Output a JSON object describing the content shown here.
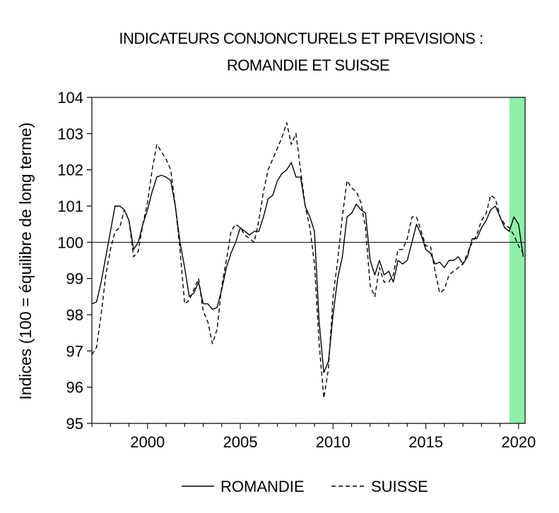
{
  "chart_data": {
    "type": "line",
    "title": [
      "INDICATEURS CONJONCTURELS ET PREVISIONS :",
      "ROMANDIE ET SUISSE"
    ],
    "ylabel": "Indices (100 = équilibre de long terme)",
    "xlabel": "",
    "xlim": [
      1997,
      2020.35
    ],
    "ylim": [
      95,
      104
    ],
    "x_ticks": [
      2000,
      2005,
      2010,
      2015,
      2020
    ],
    "y_ticks": [
      95,
      96,
      97,
      98,
      99,
      100,
      101,
      102,
      103,
      104
    ],
    "reference_line": 100,
    "forecast_band": {
      "from": 2019.5,
      "to": 2020.35,
      "color": "#8ef0a8"
    },
    "legend_position": "bottom",
    "series": [
      {
        "name": "ROMANDIE",
        "style": "solid",
        "points": [
          [
            1997.0,
            98.3
          ],
          [
            1997.25,
            98.35
          ],
          [
            1997.5,
            98.9
          ],
          [
            1997.75,
            99.6
          ],
          [
            1998.0,
            100.3
          ],
          [
            1998.25,
            101.0
          ],
          [
            1998.5,
            101.0
          ],
          [
            1998.75,
            100.9
          ],
          [
            1999.0,
            100.6
          ],
          [
            1999.25,
            99.8
          ],
          [
            1999.5,
            100.0
          ],
          [
            1999.75,
            100.5
          ],
          [
            2000.0,
            100.9
          ],
          [
            2000.25,
            101.4
          ],
          [
            2000.5,
            101.8
          ],
          [
            2000.75,
            101.85
          ],
          [
            2001.0,
            101.8
          ],
          [
            2001.25,
            101.7
          ],
          [
            2001.5,
            101.0
          ],
          [
            2001.75,
            100.0
          ],
          [
            2002.0,
            99.3
          ],
          [
            2002.25,
            98.5
          ],
          [
            2002.5,
            98.6
          ],
          [
            2002.75,
            98.9
          ],
          [
            2003.0,
            98.3
          ],
          [
            2003.25,
            98.3
          ],
          [
            2003.5,
            98.15
          ],
          [
            2003.75,
            98.2
          ],
          [
            2004.0,
            98.7
          ],
          [
            2004.25,
            99.3
          ],
          [
            2004.5,
            99.7
          ],
          [
            2004.75,
            100.0
          ],
          [
            2005.0,
            100.4
          ],
          [
            2005.25,
            100.3
          ],
          [
            2005.5,
            100.2
          ],
          [
            2005.75,
            100.3
          ],
          [
            2006.0,
            100.3
          ],
          [
            2006.25,
            100.7
          ],
          [
            2006.5,
            101.2
          ],
          [
            2006.75,
            101.3
          ],
          [
            2007.0,
            101.7
          ],
          [
            2007.25,
            101.9
          ],
          [
            2007.5,
            102.0
          ],
          [
            2007.75,
            102.2
          ],
          [
            2008.0,
            101.8
          ],
          [
            2008.25,
            101.8
          ],
          [
            2008.5,
            101.0
          ],
          [
            2008.75,
            100.7
          ],
          [
            2009.0,
            100.3
          ],
          [
            2009.25,
            97.8
          ],
          [
            2009.5,
            96.4
          ],
          [
            2009.75,
            96.7
          ],
          [
            2010.0,
            98.0
          ],
          [
            2010.25,
            99.0
          ],
          [
            2010.5,
            99.6
          ],
          [
            2010.75,
            100.7
          ],
          [
            2011.0,
            100.8
          ],
          [
            2011.25,
            101.05
          ],
          [
            2011.5,
            100.9
          ],
          [
            2011.75,
            100.8
          ],
          [
            2012.0,
            99.5
          ],
          [
            2012.25,
            99.1
          ],
          [
            2012.5,
            99.5
          ],
          [
            2012.75,
            99.1
          ],
          [
            2013.0,
            99.2
          ],
          [
            2013.25,
            98.9
          ],
          [
            2013.5,
            99.5
          ],
          [
            2013.75,
            99.4
          ],
          [
            2014.0,
            99.5
          ],
          [
            2014.25,
            100.0
          ],
          [
            2014.5,
            100.5
          ],
          [
            2014.75,
            100.2
          ],
          [
            2015.0,
            99.8
          ],
          [
            2015.25,
            99.7
          ],
          [
            2015.5,
            99.4
          ],
          [
            2015.75,
            99.45
          ],
          [
            2016.0,
            99.3
          ],
          [
            2016.25,
            99.5
          ],
          [
            2016.5,
            99.5
          ],
          [
            2016.75,
            99.6
          ],
          [
            2017.0,
            99.4
          ],
          [
            2017.25,
            99.6
          ],
          [
            2017.5,
            100.1
          ],
          [
            2017.75,
            100.1
          ],
          [
            2018.0,
            100.4
          ],
          [
            2018.25,
            100.6
          ],
          [
            2018.5,
            100.9
          ],
          [
            2018.75,
            101.0
          ],
          [
            2019.0,
            100.7
          ],
          [
            2019.25,
            100.4
          ],
          [
            2019.5,
            100.3
          ],
          [
            2019.75,
            100.7
          ],
          [
            2020.0,
            100.5
          ],
          [
            2020.25,
            99.6
          ]
        ]
      },
      {
        "name": "SUISSE",
        "style": "dashed",
        "points": [
          [
            1997.0,
            96.9
          ],
          [
            1997.25,
            97.1
          ],
          [
            1997.5,
            98.0
          ],
          [
            1997.75,
            99.1
          ],
          [
            1998.0,
            99.8
          ],
          [
            1998.25,
            100.3
          ],
          [
            1998.5,
            100.4
          ],
          [
            1998.75,
            100.9
          ],
          [
            1999.0,
            100.6
          ],
          [
            1999.25,
            99.6
          ],
          [
            1999.5,
            99.75
          ],
          [
            1999.75,
            100.5
          ],
          [
            2000.0,
            101.1
          ],
          [
            2000.25,
            102.0
          ],
          [
            2000.5,
            102.7
          ],
          [
            2000.75,
            102.5
          ],
          [
            2001.0,
            102.3
          ],
          [
            2001.25,
            102.0
          ],
          [
            2001.5,
            101.0
          ],
          [
            2001.75,
            99.8
          ],
          [
            2002.0,
            98.3
          ],
          [
            2002.25,
            98.4
          ],
          [
            2002.5,
            98.7
          ],
          [
            2002.75,
            99.0
          ],
          [
            2003.0,
            98.1
          ],
          [
            2003.25,
            97.8
          ],
          [
            2003.5,
            97.2
          ],
          [
            2003.75,
            97.6
          ],
          [
            2004.0,
            98.8
          ],
          [
            2004.25,
            99.5
          ],
          [
            2004.5,
            100.3
          ],
          [
            2004.75,
            100.5
          ],
          [
            2005.0,
            100.4
          ],
          [
            2005.25,
            100.2
          ],
          [
            2005.5,
            100.1
          ],
          [
            2005.75,
            100.0
          ],
          [
            2006.0,
            100.6
          ],
          [
            2006.25,
            101.4
          ],
          [
            2006.5,
            102.0
          ],
          [
            2006.75,
            102.3
          ],
          [
            2007.0,
            102.6
          ],
          [
            2007.25,
            102.9
          ],
          [
            2007.5,
            103.3
          ],
          [
            2007.75,
            102.7
          ],
          [
            2008.0,
            103.0
          ],
          [
            2008.25,
            102.0
          ],
          [
            2008.5,
            101.0
          ],
          [
            2008.75,
            100.4
          ],
          [
            2009.0,
            99.4
          ],
          [
            2009.25,
            97.2
          ],
          [
            2009.5,
            95.7
          ],
          [
            2009.75,
            96.5
          ],
          [
            2010.0,
            98.5
          ],
          [
            2010.25,
            99.5
          ],
          [
            2010.5,
            100.7
          ],
          [
            2010.75,
            101.7
          ],
          [
            2011.0,
            101.5
          ],
          [
            2011.25,
            101.4
          ],
          [
            2011.5,
            101.1
          ],
          [
            2011.75,
            100.4
          ],
          [
            2012.0,
            98.8
          ],
          [
            2012.25,
            98.5
          ],
          [
            2012.5,
            99.3
          ],
          [
            2012.75,
            98.9
          ],
          [
            2013.0,
            98.9
          ],
          [
            2013.25,
            99.1
          ],
          [
            2013.5,
            99.8
          ],
          [
            2013.75,
            99.8
          ],
          [
            2014.0,
            100.1
          ],
          [
            2014.25,
            100.7
          ],
          [
            2014.5,
            100.7
          ],
          [
            2014.75,
            100.3
          ],
          [
            2015.0,
            99.9
          ],
          [
            2015.25,
            99.9
          ],
          [
            2015.5,
            99.2
          ],
          [
            2015.75,
            98.6
          ],
          [
            2016.0,
            98.7
          ],
          [
            2016.25,
            99.1
          ],
          [
            2016.5,
            99.2
          ],
          [
            2016.75,
            99.3
          ],
          [
            2017.0,
            99.4
          ],
          [
            2017.25,
            99.7
          ],
          [
            2017.5,
            100.0
          ],
          [
            2017.75,
            100.2
          ],
          [
            2018.0,
            100.6
          ],
          [
            2018.25,
            100.8
          ],
          [
            2018.5,
            101.3
          ],
          [
            2018.75,
            101.2
          ],
          [
            2019.0,
            100.7
          ],
          [
            2019.25,
            100.5
          ],
          [
            2019.5,
            100.4
          ],
          [
            2019.75,
            100.2
          ],
          [
            2020.0,
            99.9
          ],
          [
            2020.25,
            99.7
          ]
        ]
      }
    ]
  }
}
